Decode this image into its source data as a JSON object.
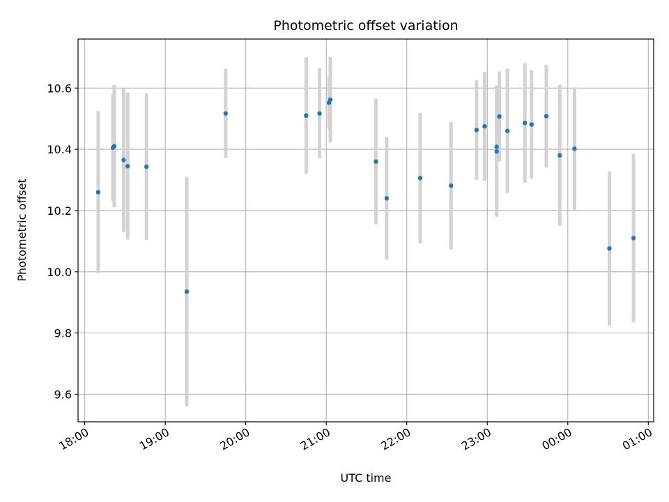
{
  "chart_data": {
    "type": "scatter",
    "title": "Photometric offset variation",
    "xlabel": "UTC time",
    "ylabel": "Photometric offset",
    "x_axis_type": "time",
    "xlim": [
      "17:55",
      "01:04"
    ],
    "ylim": [
      9.51,
      10.76
    ],
    "x_ticks": [
      "18:00",
      "19:00",
      "20:00",
      "21:00",
      "22:00",
      "23:00",
      "00:00",
      "01:00"
    ],
    "y_ticks": [
      9.6,
      9.8,
      10.0,
      10.2,
      10.4,
      10.6
    ],
    "y_tick_labels": [
      "9.6",
      "9.8",
      "10.0",
      "10.2",
      "10.4",
      "10.6"
    ],
    "grid": true,
    "point_color": "#1f77b4",
    "errorbar_color": "#d3d3d3",
    "points": [
      {
        "t": "18:10",
        "y": 10.26,
        "err": 0.265
      },
      {
        "t": "18:21",
        "y": 10.405,
        "err": 0.175
      },
      {
        "t": "18:22",
        "y": 10.41,
        "err": 0.2
      },
      {
        "t": "18:29",
        "y": 10.365,
        "err": 0.235
      },
      {
        "t": "18:32",
        "y": 10.345,
        "err": 0.24
      },
      {
        "t": "18:46",
        "y": 10.343,
        "err": 0.24
      },
      {
        "t": "19:16",
        "y": 9.935,
        "err": 0.375
      },
      {
        "t": "19:45",
        "y": 10.517,
        "err": 0.145
      },
      {
        "t": "20:45",
        "y": 10.51,
        "err": 0.19
      },
      {
        "t": "20:55",
        "y": 10.517,
        "err": 0.147
      },
      {
        "t": "21:02",
        "y": 10.552,
        "err": 0.085
      },
      {
        "t": "21:03",
        "y": 10.562,
        "err": 0.14
      },
      {
        "t": "21:37",
        "y": 10.36,
        "err": 0.205
      },
      {
        "t": "21:45",
        "y": 10.24,
        "err": 0.2
      },
      {
        "t": "22:10",
        "y": 10.306,
        "err": 0.213
      },
      {
        "t": "22:33",
        "y": 10.281,
        "err": 0.208
      },
      {
        "t": "22:52",
        "y": 10.463,
        "err": 0.163
      },
      {
        "t": "22:58",
        "y": 10.475,
        "err": 0.178
      },
      {
        "t": "23:07",
        "y": 10.393,
        "err": 0.213
      },
      {
        "t": "23:07",
        "y": 10.408,
        "err": 0.2
      },
      {
        "t": "23:09",
        "y": 10.507,
        "err": 0.147
      },
      {
        "t": "23:15",
        "y": 10.46,
        "err": 0.203
      },
      {
        "t": "23:28",
        "y": 10.486,
        "err": 0.195
      },
      {
        "t": "23:33",
        "y": 10.481,
        "err": 0.177
      },
      {
        "t": "23:44",
        "y": 10.508,
        "err": 0.168
      },
      {
        "t": "23:54",
        "y": 10.38,
        "err": 0.23
      },
      {
        "t": "00:05",
        "y": 10.402,
        "err": 0.2
      },
      {
        "t": "00:31",
        "y": 10.076,
        "err": 0.252
      },
      {
        "t": "00:49",
        "y": 10.11,
        "err": 0.275
      }
    ]
  }
}
